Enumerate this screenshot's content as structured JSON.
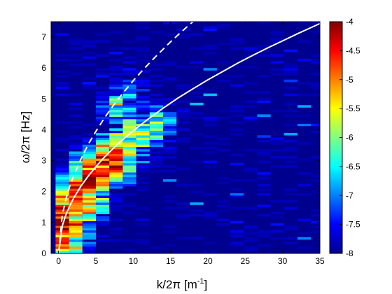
{
  "chart_data": {
    "type": "heatmap",
    "title": "",
    "xlabel": "k/2π [m",
    "xlabel_sup": "-1",
    "xlabel_suffix": "]",
    "ylabel": "ω/2π [Hz]",
    "xlim": [
      -1,
      35
    ],
    "ylim": [
      0,
      7.5
    ],
    "xticks": [
      0,
      5,
      10,
      15,
      20,
      25,
      30,
      35
    ],
    "yticks": [
      0,
      1,
      2,
      3,
      4,
      5,
      6,
      7
    ],
    "colormap": "jet",
    "clim": [
      -8,
      -4
    ],
    "colorbar_ticks": [
      "-4",
      "-4.5",
      "-5",
      "-5.5",
      "-6",
      "-6.5",
      "-7",
      "-7.5",
      "-8"
    ],
    "background_value": -8,
    "energy_ridge": [
      {
        "x": 0.5,
        "y": 0.3,
        "value": -4.8
      },
      {
        "x": 0.5,
        "y": 0.9,
        "value": -4.2
      },
      {
        "x": 0.5,
        "y": 1.3,
        "value": -4.5
      },
      {
        "x": 0.5,
        "y": 1.7,
        "value": -5.2
      },
      {
        "x": 2.3,
        "y": 0.8,
        "value": -4.9
      },
      {
        "x": 2.3,
        "y": 1.5,
        "value": -4.6
      },
      {
        "x": 2.3,
        "y": 2.0,
        "value": -4.4
      },
      {
        "x": 4.1,
        "y": 1.6,
        "value": -5.3
      },
      {
        "x": 4.1,
        "y": 2.3,
        "value": -4.3
      },
      {
        "x": 4.1,
        "y": 2.7,
        "value": -4.8
      },
      {
        "x": 6.0,
        "y": 2.5,
        "value": -4.5
      },
      {
        "x": 6.0,
        "y": 3.0,
        "value": -4.6
      },
      {
        "x": 7.8,
        "y": 2.9,
        "value": -4.4
      },
      {
        "x": 7.8,
        "y": 3.3,
        "value": -5.0
      },
      {
        "x": 9.6,
        "y": 3.4,
        "value": -5.7
      },
      {
        "x": 9.6,
        "y": 3.9,
        "value": -6.2
      },
      {
        "x": 11.4,
        "y": 3.8,
        "value": -5.9
      },
      {
        "x": 13.2,
        "y": 4.1,
        "value": -6.0
      },
      {
        "x": 8.0,
        "y": 4.6,
        "value": -6.4
      },
      {
        "x": 9.6,
        "y": 5.2,
        "value": -6.9
      }
    ],
    "series": [
      {
        "style": "dashed",
        "color": "#ffffff",
        "x": [
          0,
          0.5,
          1,
          1.5,
          2,
          3,
          4,
          5,
          6,
          7,
          8,
          9,
          10,
          11,
          12,
          13,
          14,
          15,
          16,
          17,
          18
        ],
        "y": [
          0,
          1.25,
          1.77,
          2.17,
          2.5,
          3.06,
          3.54,
          3.95,
          4.33,
          4.68,
          5.0,
          5.3,
          5.59,
          5.86,
          6.12,
          6.37,
          6.61,
          6.85,
          7.07,
          7.29,
          7.5
        ]
      },
      {
        "style": "solid",
        "color": "#ffffff",
        "x": [
          0,
          0.5,
          1,
          1.5,
          2,
          3,
          4,
          5,
          6,
          8,
          10,
          12,
          14,
          16,
          18,
          20,
          22,
          24,
          26,
          28,
          30,
          32,
          34,
          35
        ],
        "y": [
          0,
          0.89,
          1.26,
          1.54,
          1.78,
          2.18,
          2.51,
          2.81,
          3.08,
          3.56,
          3.97,
          4.35,
          4.7,
          5.03,
          5.33,
          5.62,
          5.89,
          6.16,
          6.41,
          6.65,
          6.88,
          7.11,
          7.33,
          7.44
        ]
      }
    ]
  }
}
